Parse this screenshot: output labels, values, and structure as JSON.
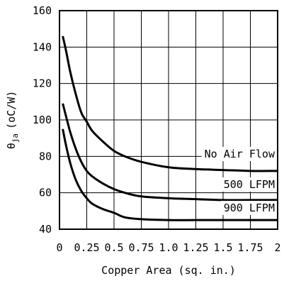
{
  "chart_data": {
    "type": "line",
    "xlabel": "Copper Area (sq. in.)",
    "ylabel": {
      "main": "θ",
      "sub": "ja",
      "unit": "(oC/W)"
    },
    "xlim": [
      0,
      2
    ],
    "ylim": [
      40,
      160
    ],
    "grid": true,
    "xticks": [
      "0",
      "0.25",
      "0.5",
      "0.75",
      "1.0",
      "1.25",
      "1.5",
      "1.75",
      "2"
    ],
    "xtick_values": [
      0,
      0.25,
      0.5,
      0.75,
      1.0,
      1.25,
      1.5,
      1.75,
      2
    ],
    "yticks": [
      "40",
      "60",
      "80",
      "100",
      "120",
      "140",
      "160"
    ],
    "ytick_values": [
      40,
      60,
      80,
      100,
      120,
      140,
      160
    ],
    "series": [
      {
        "name": "No Air Flow",
        "x": [
          0.03,
          0.06,
          0.1,
          0.15,
          0.2,
          0.25,
          0.3,
          0.4,
          0.5,
          0.6,
          0.75,
          1.0,
          1.25,
          1.5,
          1.75,
          2.0
        ],
        "y": [
          146,
          138,
          126,
          114,
          104,
          99,
          94,
          88,
          83,
          80,
          77,
          74,
          73,
          72.5,
          72,
          72
        ]
      },
      {
        "name": "500 LFPM",
        "x": [
          0.03,
          0.06,
          0.1,
          0.15,
          0.2,
          0.25,
          0.3,
          0.4,
          0.5,
          0.6,
          0.75,
          1.0,
          1.25,
          1.5,
          1.75,
          2.0
        ],
        "y": [
          109,
          102,
          93,
          84,
          77,
          72,
          69,
          65,
          62,
          60,
          58,
          57,
          56.5,
          56,
          56,
          56
        ]
      },
      {
        "name": "900 LFPM",
        "x": [
          0.03,
          0.06,
          0.1,
          0.15,
          0.2,
          0.25,
          0.3,
          0.4,
          0.5,
          0.6,
          0.75,
          1.0,
          1.25,
          1.5,
          1.75,
          2.0
        ],
        "y": [
          95,
          86,
          76,
          67,
          61,
          57,
          54,
          51,
          49,
          46.5,
          45.5,
          45,
          45,
          45,
          45,
          45
        ]
      }
    ]
  }
}
